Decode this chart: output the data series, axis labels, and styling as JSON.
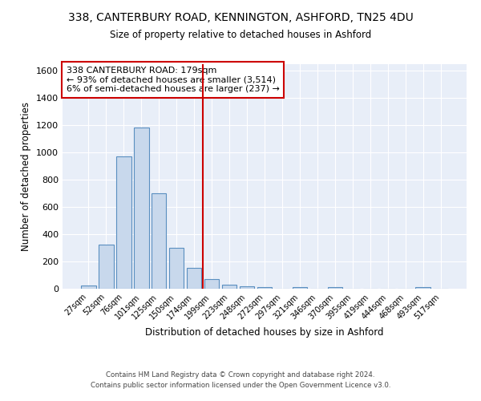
{
  "title_line1": "338, CANTERBURY ROAD, KENNINGTON, ASHFORD, TN25 4DU",
  "title_line2": "Size of property relative to detached houses in Ashford",
  "xlabel": "Distribution of detached houses by size in Ashford",
  "ylabel": "Number of detached properties",
  "footer_line1": "Contains HM Land Registry data © Crown copyright and database right 2024.",
  "footer_line2": "Contains public sector information licensed under the Open Government Licence v3.0.",
  "annotation_line1": "338 CANTERBURY ROAD: 179sqm",
  "annotation_line2": "← 93% of detached houses are smaller (3,514)",
  "annotation_line3": "6% of semi-detached houses are larger (237) →",
  "bar_labels": [
    "27sqm",
    "52sqm",
    "76sqm",
    "101sqm",
    "125sqm",
    "150sqm",
    "174sqm",
    "199sqm",
    "223sqm",
    "248sqm",
    "272sqm",
    "297sqm",
    "321sqm",
    "346sqm",
    "370sqm",
    "395sqm",
    "419sqm",
    "444sqm",
    "468sqm",
    "493sqm",
    "517sqm"
  ],
  "bar_values": [
    25,
    325,
    970,
    1185,
    700,
    300,
    155,
    70,
    30,
    20,
    12,
    0,
    12,
    0,
    12,
    0,
    0,
    0,
    0,
    12,
    0
  ],
  "bar_color": "#c8d8ec",
  "bar_edge_color": "#5a8fc0",
  "bg_color": "#e8eef8",
  "grid_color": "#ffffff",
  "vline_x": 6.5,
  "vline_color": "#cc0000",
  "ylim": [
    0,
    1650
  ],
  "yticks": [
    0,
    200,
    400,
    600,
    800,
    1000,
    1200,
    1400,
    1600
  ]
}
